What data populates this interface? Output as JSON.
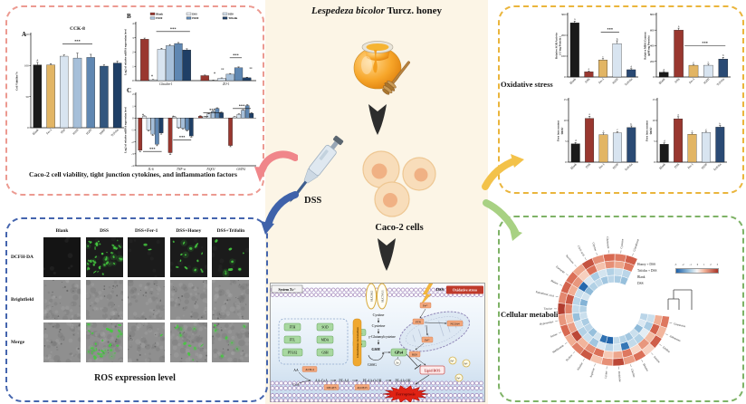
{
  "center": {
    "title_latin": "Lespedeza bicolor",
    "title_rest": " Turcz. honey",
    "dss": "DSS",
    "cells": "Caco-2 cells"
  },
  "panels": {
    "viability": {
      "letter_a": "A",
      "letter_b": "B",
      "letter_c": "C",
      "caption": "Caco-2 cell viability, tight junction cytokines, and inflammation factors"
    },
    "ros": {
      "caption": "ROS expression level",
      "col_headers": [
        "Blank",
        "DSS",
        "DSS+Fer-1",
        "DSS+Honey",
        "DSS+Trifolin"
      ],
      "rows": [
        {
          "label": "DCFH-DA",
          "type": "dark",
          "dots": [
            0,
            40,
            2,
            15,
            9
          ]
        },
        {
          "label": "Brightfield",
          "type": "gray",
          "dots": [
            0,
            0,
            0,
            0,
            0
          ]
        },
        {
          "label": "Merge",
          "type": "gray",
          "dots": [
            0,
            32,
            1,
            11,
            7
          ]
        }
      ]
    },
    "oxidative": {
      "label": "Oxidative stress"
    },
    "metabolites": {
      "label": "Cellular metabolites",
      "ring_labels": [
        "Honey + DSS",
        "Trifolin + DSS",
        "Blank",
        "DSS"
      ],
      "legend_ticks": [
        "-3",
        "-2",
        "-1",
        "0",
        "1",
        "2",
        "3"
      ]
    }
  },
  "chart_data": [
    {
      "type": "bar",
      "title": "CCK-8",
      "ylabel": "Cell Viability/%",
      "ylim": [
        0,
        150
      ],
      "yticks": [
        0,
        50,
        100,
        150
      ],
      "categories": [
        "Blank",
        "Fer-1",
        "H50",
        "H100",
        "H200",
        "H400",
        "Trifolin"
      ],
      "values": [
        101,
        101,
        115,
        112,
        113,
        99,
        104
      ],
      "errors": [
        4,
        2,
        2,
        8,
        5,
        2,
        3
      ],
      "colors": [
        "#1a1a1a",
        "#e2b564",
        "#d8e4f0",
        "#a6bfd9",
        "#5f87b2",
        "#32567e",
        "#1f3f66"
      ],
      "letters": [
        "#",
        "",
        "",
        "",
        "",
        "",
        ""
      ],
      "sig": [
        {
          "fx1": 0.34,
          "fx2": 0.66,
          "fy": 0.1,
          "label": "***"
        }
      ],
      "xrot": -45
    },
    {
      "type": "grouped-bar",
      "ylabel": "Log2 of relative mRNA expression level",
      "ylim": [
        0,
        4
      ],
      "yticks": [
        0,
        1,
        2,
        3,
        4
      ],
      "categories": [
        "Claudin-1",
        "ZO-1"
      ],
      "xitalic": true,
      "legend": true,
      "series": [
        {
          "name": "Blank",
          "color": "#99372f",
          "values": [
            2.9,
            0.35
          ],
          "errors": [
            0.08,
            0.04
          ]
        },
        {
          "name": "DSS",
          "color": "#eef2f7",
          "values": [
            0.06,
            0.03
          ],
          "errors": [
            0.02,
            0.01
          ]
        },
        {
          "name": "H50",
          "color": "#d8e4f0",
          "values": [
            2.2,
            0.16
          ],
          "errors": [
            0.07,
            0.03
          ]
        },
        {
          "name": "H100",
          "color": "#a6bfd9",
          "values": [
            2.45,
            0.45
          ],
          "errors": [
            0.08,
            0.05
          ]
        },
        {
          "name": "H200",
          "color": "#5f87b2",
          "values": [
            2.6,
            0.9
          ],
          "errors": [
            0.07,
            0.06
          ]
        },
        {
          "name": "Trifolin",
          "color": "#1f3f66",
          "values": [
            2.15,
            0.2
          ],
          "errors": [
            0.08,
            0.04
          ]
        }
      ],
      "sig": [
        {
          "fx1": 0.17,
          "fx2": 0.45,
          "fy": 0.14,
          "label": "***"
        },
        {
          "fx1": 0.78,
          "fx2": 0.88,
          "fy": 0.6,
          "label": "***"
        }
      ],
      "ann": [
        {
          "fx": 0.135,
          "fy": 0.93,
          "label": "#"
        },
        {
          "fx": 0.655,
          "fy": 0.88,
          "label": "#"
        },
        {
          "fx": 0.72,
          "fy": 0.82,
          "label": "**"
        },
        {
          "fx": 0.955,
          "fy": 0.8,
          "label": "**"
        }
      ]
    },
    {
      "type": "grouped-bar",
      "ylabel": "Log2 of relative mRNA expression level",
      "ylim": [
        -4,
        2
      ],
      "yticks": [
        -4,
        -3,
        -2,
        -1,
        0,
        1,
        2
      ],
      "categories": [
        "IL-6",
        "TNF-α",
        "NQO1",
        "GSTA1"
      ],
      "xitalic": true,
      "series": [
        {
          "name": "Blank",
          "color": "#99372f",
          "values": [
            -2.7,
            -2.9,
            0.15,
            -2.3
          ],
          "errors": [
            0.12,
            0.15,
            0.04,
            0.1
          ]
        },
        {
          "name": "DSS",
          "color": "#eef2f7",
          "values": [
            0.15,
            0.1,
            0.1,
            0.1
          ],
          "errors": [
            0.04,
            0.03,
            0.03,
            0.03
          ]
        },
        {
          "name": "H50",
          "color": "#d8e4f0",
          "values": [
            -1.0,
            -0.8,
            0.35,
            0.3
          ],
          "errors": [
            0.08,
            0.06,
            0.05,
            0.05
          ]
        },
        {
          "name": "H100",
          "color": "#a6bfd9",
          "values": [
            -1.35,
            -0.85,
            0.55,
            0.65
          ],
          "errors": [
            0.1,
            0.07,
            0.06,
            0.06
          ]
        },
        {
          "name": "H200",
          "color": "#5f87b2",
          "values": [
            -2.2,
            -1.0,
            0.8,
            1.05
          ],
          "errors": [
            0.12,
            0.08,
            0.06,
            0.07
          ]
        },
        {
          "name": "Trifolin",
          "color": "#1f3f66",
          "values": [
            -1.25,
            -1.5,
            0.45,
            0.4
          ],
          "errors": [
            0.1,
            0.1,
            0.05,
            0.05
          ]
        }
      ],
      "sig": [
        {
          "fx1": 0.06,
          "fx2": 0.215,
          "fy": 0.8,
          "label": "***"
        },
        {
          "fx1": 0.31,
          "fx2": 0.46,
          "fy": 0.64,
          "label": "***"
        },
        {
          "fx1": 0.56,
          "fx2": 0.71,
          "fy": 0.26,
          "label": "***"
        },
        {
          "fx1": 0.805,
          "fx2": 0.955,
          "fy": 0.2,
          "label": "***"
        }
      ],
      "ann": [
        {
          "fx": 0.59,
          "fy": 0.33,
          "label": "**"
        },
        {
          "fx": 0.06,
          "fy": 0.3,
          "label": "#"
        },
        {
          "fx": 0.31,
          "fy": 0.32,
          "label": "#"
        }
      ]
    },
    {
      "type": "bar",
      "ylabel": "Relative SOD Activity\n( U/mg Protein )",
      "ylim": [
        0,
        300
      ],
      "yticks": [
        0,
        100,
        200,
        300
      ],
      "categories": [
        "Blank",
        "DSS",
        "Fer-1",
        "H200",
        "Trifolin"
      ],
      "values": [
        260,
        25,
        82,
        160,
        35
      ],
      "errors": [
        8,
        4,
        6,
        14,
        5
      ],
      "colors": [
        "#1a1a1a",
        "#99372f",
        "#e2b564",
        "#d8e4f0",
        "#2a4a74"
      ],
      "letters": [
        "a",
        "e",
        "c",
        "b",
        "d"
      ],
      "sig": [
        {
          "fx1": 0.47,
          "fx2": 0.73,
          "fy": 0.28,
          "label": "***"
        }
      ],
      "xrot": -45
    },
    {
      "type": "bar",
      "ylabel": "Relative MDA Content\n(μM/mg Protein)",
      "ylim": [
        0,
        800
      ],
      "yticks": [
        0,
        200,
        400,
        600,
        800
      ],
      "categories": [
        "Blank",
        "DSS",
        "Fer-1",
        "H200",
        "Trifolin"
      ],
      "values": [
        60,
        600,
        150,
        150,
        230
      ],
      "errors": [
        10,
        25,
        12,
        14,
        22
      ],
      "colors": [
        "#1a1a1a",
        "#99372f",
        "#e2b564",
        "#d8e4f0",
        "#2a4a74"
      ],
      "letters": [
        "d",
        "a",
        "c",
        "c",
        "b"
      ],
      "sig": [
        {
          "fx1": 0.38,
          "fx2": 0.93,
          "fy": 0.5,
          "label": "***"
        }
      ],
      "xrot": -45
    },
    {
      "type": "bar",
      "ylabel": "Free iron content\n(μg/g)",
      "ylim": [
        0,
        15
      ],
      "yticks": [
        0,
        5,
        10,
        15
      ],
      "categories": [
        "Blank",
        "DSS",
        "Fer-1",
        "H200",
        "Trifolin"
      ],
      "values": [
        4.4,
        10.5,
        6.6,
        7.0,
        8.3
      ],
      "errors": [
        0.3,
        0.5,
        0.4,
        0.3,
        0.4
      ],
      "colors": [
        "#1a1a1a",
        "#99372f",
        "#e2b564",
        "#d8e4f0",
        "#2a4a74"
      ],
      "letters": [
        "d",
        "a",
        "c",
        "c",
        "b"
      ],
      "sig": [],
      "xrot": -45
    },
    {
      "type": "bar",
      "ylabel": "Free iron content\n(μg/g)",
      "ylim": [
        0,
        15
      ],
      "yticks": [
        0,
        5,
        10,
        15
      ],
      "categories": [
        "Blank",
        "DSS",
        "Fer-1",
        "H200",
        "Trifolin"
      ],
      "values": [
        4.3,
        10.4,
        6.7,
        7.1,
        8.4
      ],
      "errors": [
        0.3,
        0.5,
        0.3,
        0.3,
        0.4
      ],
      "colors": [
        "#1a1a1a",
        "#99372f",
        "#e2b564",
        "#d8e4f0",
        "#2a4a74"
      ],
      "letters": [
        "d",
        "a",
        "c",
        "c",
        "b"
      ],
      "sig": [],
      "xrot": -45
    },
    {
      "type": "heatmap",
      "rings": [
        "Honey + DSS",
        "Trifolin + DSS",
        "Blank",
        "DSS"
      ],
      "metabolites": [
        {
          "name": "Glutathione",
          "values": [
            2.2,
            1.8,
            -0.8,
            -1.2
          ]
        },
        {
          "name": "Cysteine",
          "values": [
            1.8,
            1.2,
            -0.6,
            -1.0
          ]
        },
        {
          "name": "Glutamate",
          "values": [
            2.0,
            1.5,
            -0.9,
            -0.8
          ]
        },
        {
          "name": "Glycine",
          "values": [
            1.5,
            0.8,
            -0.5,
            -1.1
          ]
        },
        {
          "name": "Citric acid",
          "values": [
            2.4,
            1.9,
            -1.0,
            -0.7
          ]
        },
        {
          "name": "Succinate",
          "values": [
            1.2,
            0.6,
            -0.4,
            -0.9
          ]
        },
        {
          "name": "Fumarate",
          "values": [
            1.9,
            1.4,
            -2.8,
            -1.3
          ]
        },
        {
          "name": "Malate",
          "values": [
            2.1,
            1.1,
            -0.6,
            -0.5
          ]
        },
        {
          "name": "Pantothenic acid",
          "values": [
            1.6,
            2.3,
            -0.8,
            -1.4
          ]
        },
        {
          "name": "Taurine",
          "values": [
            2.8,
            1.7,
            -0.7,
            -0.9
          ]
        },
        {
          "name": "Hypotaurine",
          "values": [
            1.4,
            0.9,
            -1.2,
            -0.6
          ]
        },
        {
          "name": "Serine",
          "values": [
            2.0,
            1.3,
            -0.5,
            -1.0
          ]
        },
        {
          "name": "Methionine",
          "values": [
            1.1,
            2.6,
            -0.9,
            -0.8
          ]
        },
        {
          "name": "Proline",
          "values": [
            1.7,
            1.0,
            -0.6,
            -1.2
          ]
        },
        {
          "name": "Alanine",
          "values": [
            2.3,
            1.5,
            -1.1,
            -0.5
          ]
        },
        {
          "name": "Arginine",
          "values": [
            0.8,
            1.9,
            -0.4,
            -2.6
          ]
        },
        {
          "name": "Lysine",
          "values": [
            1.5,
            0.7,
            -0.8,
            -2.9
          ]
        },
        {
          "name": "Ornithine",
          "values": [
            2.6,
            1.2,
            -0.5,
            -0.7
          ]
        },
        {
          "name": "Choline",
          "values": [
            1.3,
            1.8,
            -2.5,
            -0.9
          ]
        },
        {
          "name": "Betaine",
          "values": [
            1.9,
            0.5,
            -0.7,
            -1.1
          ]
        },
        {
          "name": "Inosine",
          "values": [
            0.6,
            1.4,
            -0.9,
            -0.6
          ]
        },
        {
          "name": "Uridine",
          "values": [
            2.2,
            0.9,
            -0.3,
            -1.3
          ]
        },
        {
          "name": "Adenosine",
          "values": [
            1.0,
            2.1,
            -1.0,
            -0.4
          ]
        },
        {
          "name": "Guanosine",
          "values": [
            1.8,
            1.1,
            -0.6,
            -0.8
          ]
        }
      ]
    }
  ],
  "pathway": {
    "system": "System Xc⁻",
    "slc1": "SLC3A2",
    "slc2": "SLC7A11",
    "dss": "DSS",
    "stress": "Oxidative stress",
    "cystine": "Cystine",
    "cysteine": "Cysteine",
    "gcl": "GCL",
    "ggc": "γ-Glutamylcysteine",
    "gss": "GSS",
    "gsh": "GSH",
    "gssg": "GSSG",
    "gpx4": "GPx4",
    "se": "Se",
    "grid": [
      "FTH",
      "SOD",
      "FTL",
      "MDA",
      "PTGS2",
      "GSH"
    ],
    "ribbon": "Glutathione metabolism",
    "aa": "AA",
    "coa": "CoA",
    "acsl4": "ACSL4",
    "aacoa": "AA-CoA",
    "peaa": "PE-AA",
    "lpcat3": "LPCAT3",
    "alox15": "ALOX15",
    "peaaooh": "PE-AA-O-OH",
    "peaaoh": "PE-AA-OH",
    "mito": [
      "Fe³⁺",
      "FTN",
      "NCOA4",
      "Fe²⁺",
      "ROS"
    ],
    "lipidros": "Lipid ROS",
    "fe": "Fe²⁺",
    "ferroptosis": "Ferroptosis"
  }
}
